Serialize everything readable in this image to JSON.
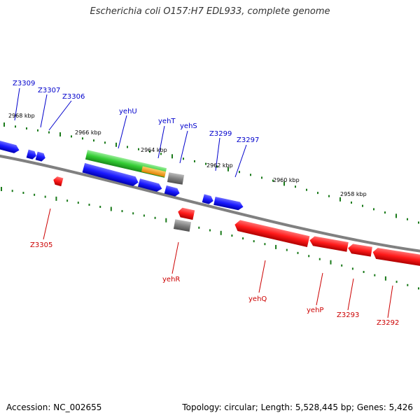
{
  "title": "Escherichia coli O157:H7 EDL933, complete genome",
  "footer": {
    "accession": "Accession: NC_002655",
    "summary": "Topology: circular; Length: 5,528,445 bp; Genes: 5,426"
  },
  "colors": {
    "forward_gene": "#1a1aff",
    "reverse_gene": "#ff1a1a",
    "highlight_gene": "#33cc33",
    "overlap": "#ff9900",
    "other_feature": "#808080",
    "backbone": "#808080",
    "tick": "#1a7a1a",
    "forward_label": "#0000cc",
    "reverse_label": "#cc0000"
  },
  "scale_labels": [
    "2968 kbp",
    "2966 kbp",
    "2964 kbp",
    "2962 kbp",
    "2960 kbp",
    "2958 kbp"
  ],
  "genes_forward": [
    "Z3309",
    "Z3307",
    "Z3306",
    "yehU",
    "yehT",
    "yehS",
    "Z3299",
    "Z3297"
  ],
  "genes_reverse": [
    "Z3305",
    "yehR",
    "yehQ",
    "yehP",
    "Z3293",
    "Z3292"
  ]
}
